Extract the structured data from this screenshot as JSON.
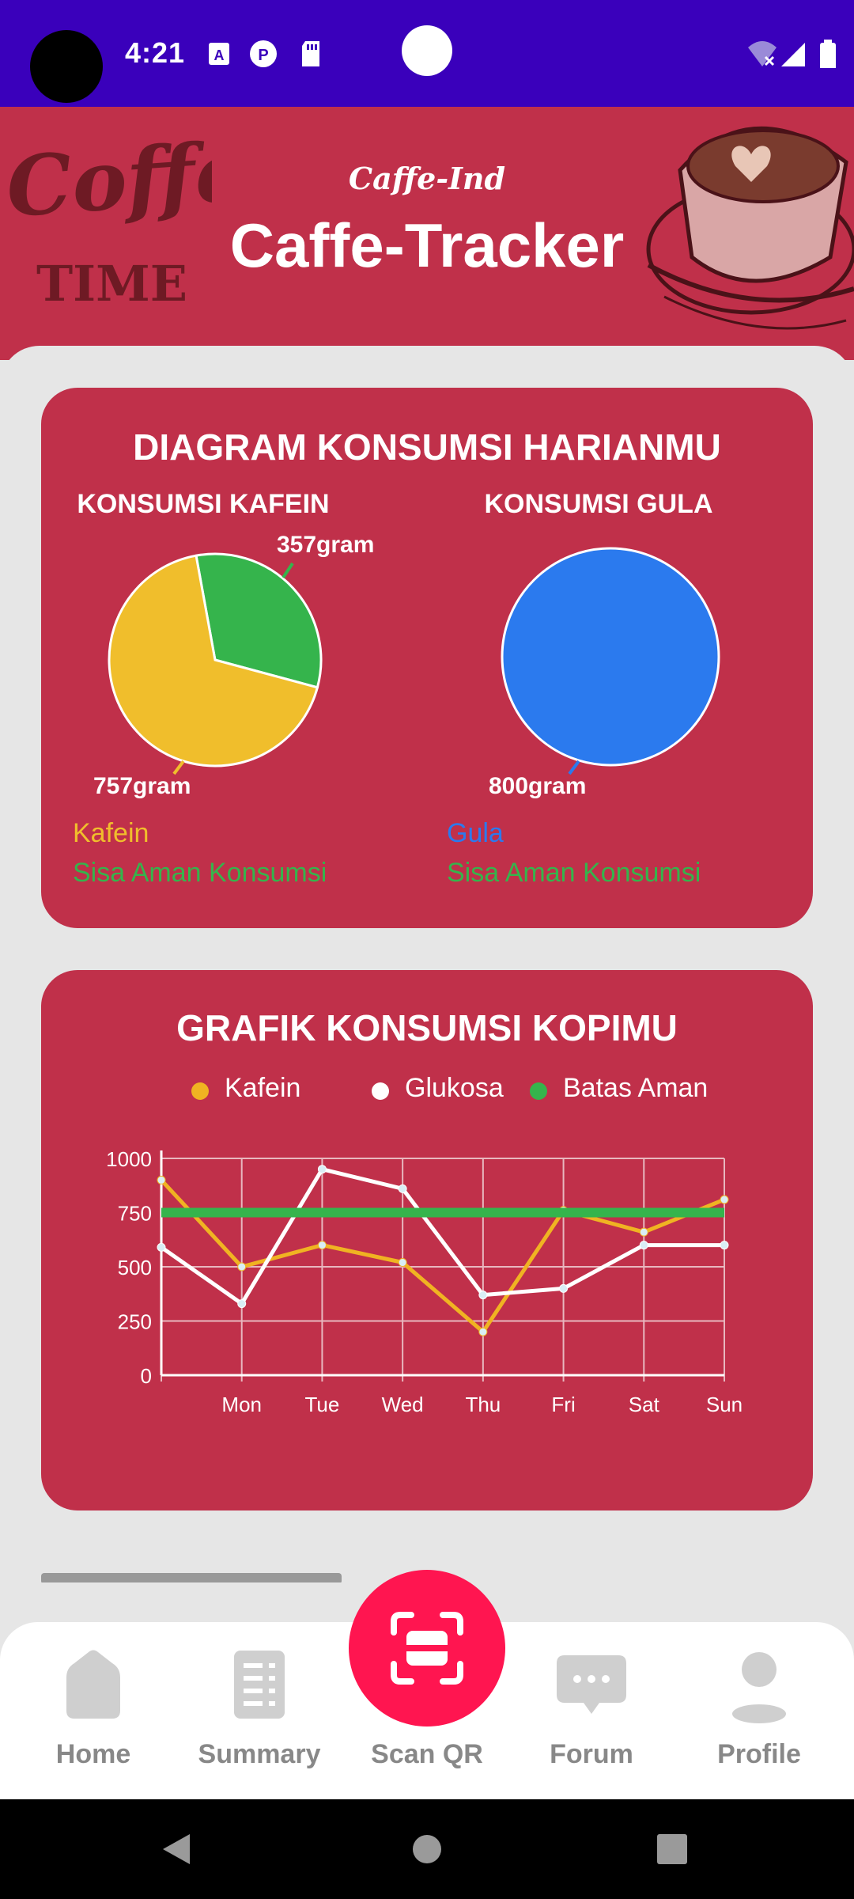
{
  "status_bar": {
    "time": "4:21",
    "icons": [
      "a-notification-icon",
      "p-notification-icon",
      "sd-card-icon",
      "wifi-icon",
      "signal-icon",
      "battery-icon"
    ]
  },
  "header": {
    "brand": "Caffe-Ind",
    "title": "Caffe-Tracker",
    "decor_text_1": "Coffee",
    "decor_text_2": "TIME",
    "background_color": "#c0304a"
  },
  "pie_card": {
    "title": "DIAGRAM KONSUMSI HARIANMU",
    "caffeine": {
      "subtitle": "KONSUMSI KAFEIN",
      "label_top": "357gram",
      "label_bottom": "757gram",
      "legend_1": "Kafein",
      "legend_2": "Sisa Aman Konsumsi"
    },
    "sugar": {
      "subtitle": "KONSUMSI GULA",
      "label_bottom": "800gram",
      "legend_1": "Gula",
      "legend_2": "Sisa Aman Konsumsi"
    }
  },
  "line_card": {
    "title": "GRAFIK KONSUMSI KOPIMU",
    "legend": [
      "Kafein",
      "Glukosa",
      "Batas Aman"
    ]
  },
  "chart_data": [
    {
      "type": "pie",
      "title": "KONSUMSI KAFEIN",
      "slices": [
        {
          "name": "Kafein",
          "value": 757,
          "color": "#f0be2c"
        },
        {
          "name": "Sisa Aman Konsumsi",
          "value": 357,
          "color": "#35b44c"
        }
      ]
    },
    {
      "type": "pie",
      "title": "KONSUMSI GULA",
      "slices": [
        {
          "name": "Gula",
          "value": 800,
          "color": "#2b7aee"
        }
      ]
    },
    {
      "type": "line",
      "title": "GRAFIK KONSUMSI KOPIMU",
      "categories": [
        "",
        "Mon",
        "Tue",
        "Wed",
        "Thu",
        "Fri",
        "Sat",
        "Sun"
      ],
      "yticks": [
        0,
        250,
        500,
        750,
        1000
      ],
      "ylim": [
        0,
        1000
      ],
      "series": [
        {
          "name": "Kafein",
          "color": "#f0b322",
          "values": [
            900,
            500,
            600,
            520,
            200,
            760,
            660,
            810
          ]
        },
        {
          "name": "Glukosa",
          "color": "#ffffff",
          "values": [
            590,
            330,
            950,
            860,
            370,
            400,
            600,
            600
          ]
        },
        {
          "name": "Batas Aman",
          "color": "#35b44c",
          "values": [
            750,
            750,
            750,
            750,
            750,
            750,
            750,
            750
          ]
        }
      ]
    }
  ],
  "bottom_nav": {
    "items": [
      {
        "label": "Home"
      },
      {
        "label": "Summary"
      },
      {
        "label": "Scan QR"
      },
      {
        "label": "Forum"
      },
      {
        "label": "Profile"
      }
    ]
  }
}
